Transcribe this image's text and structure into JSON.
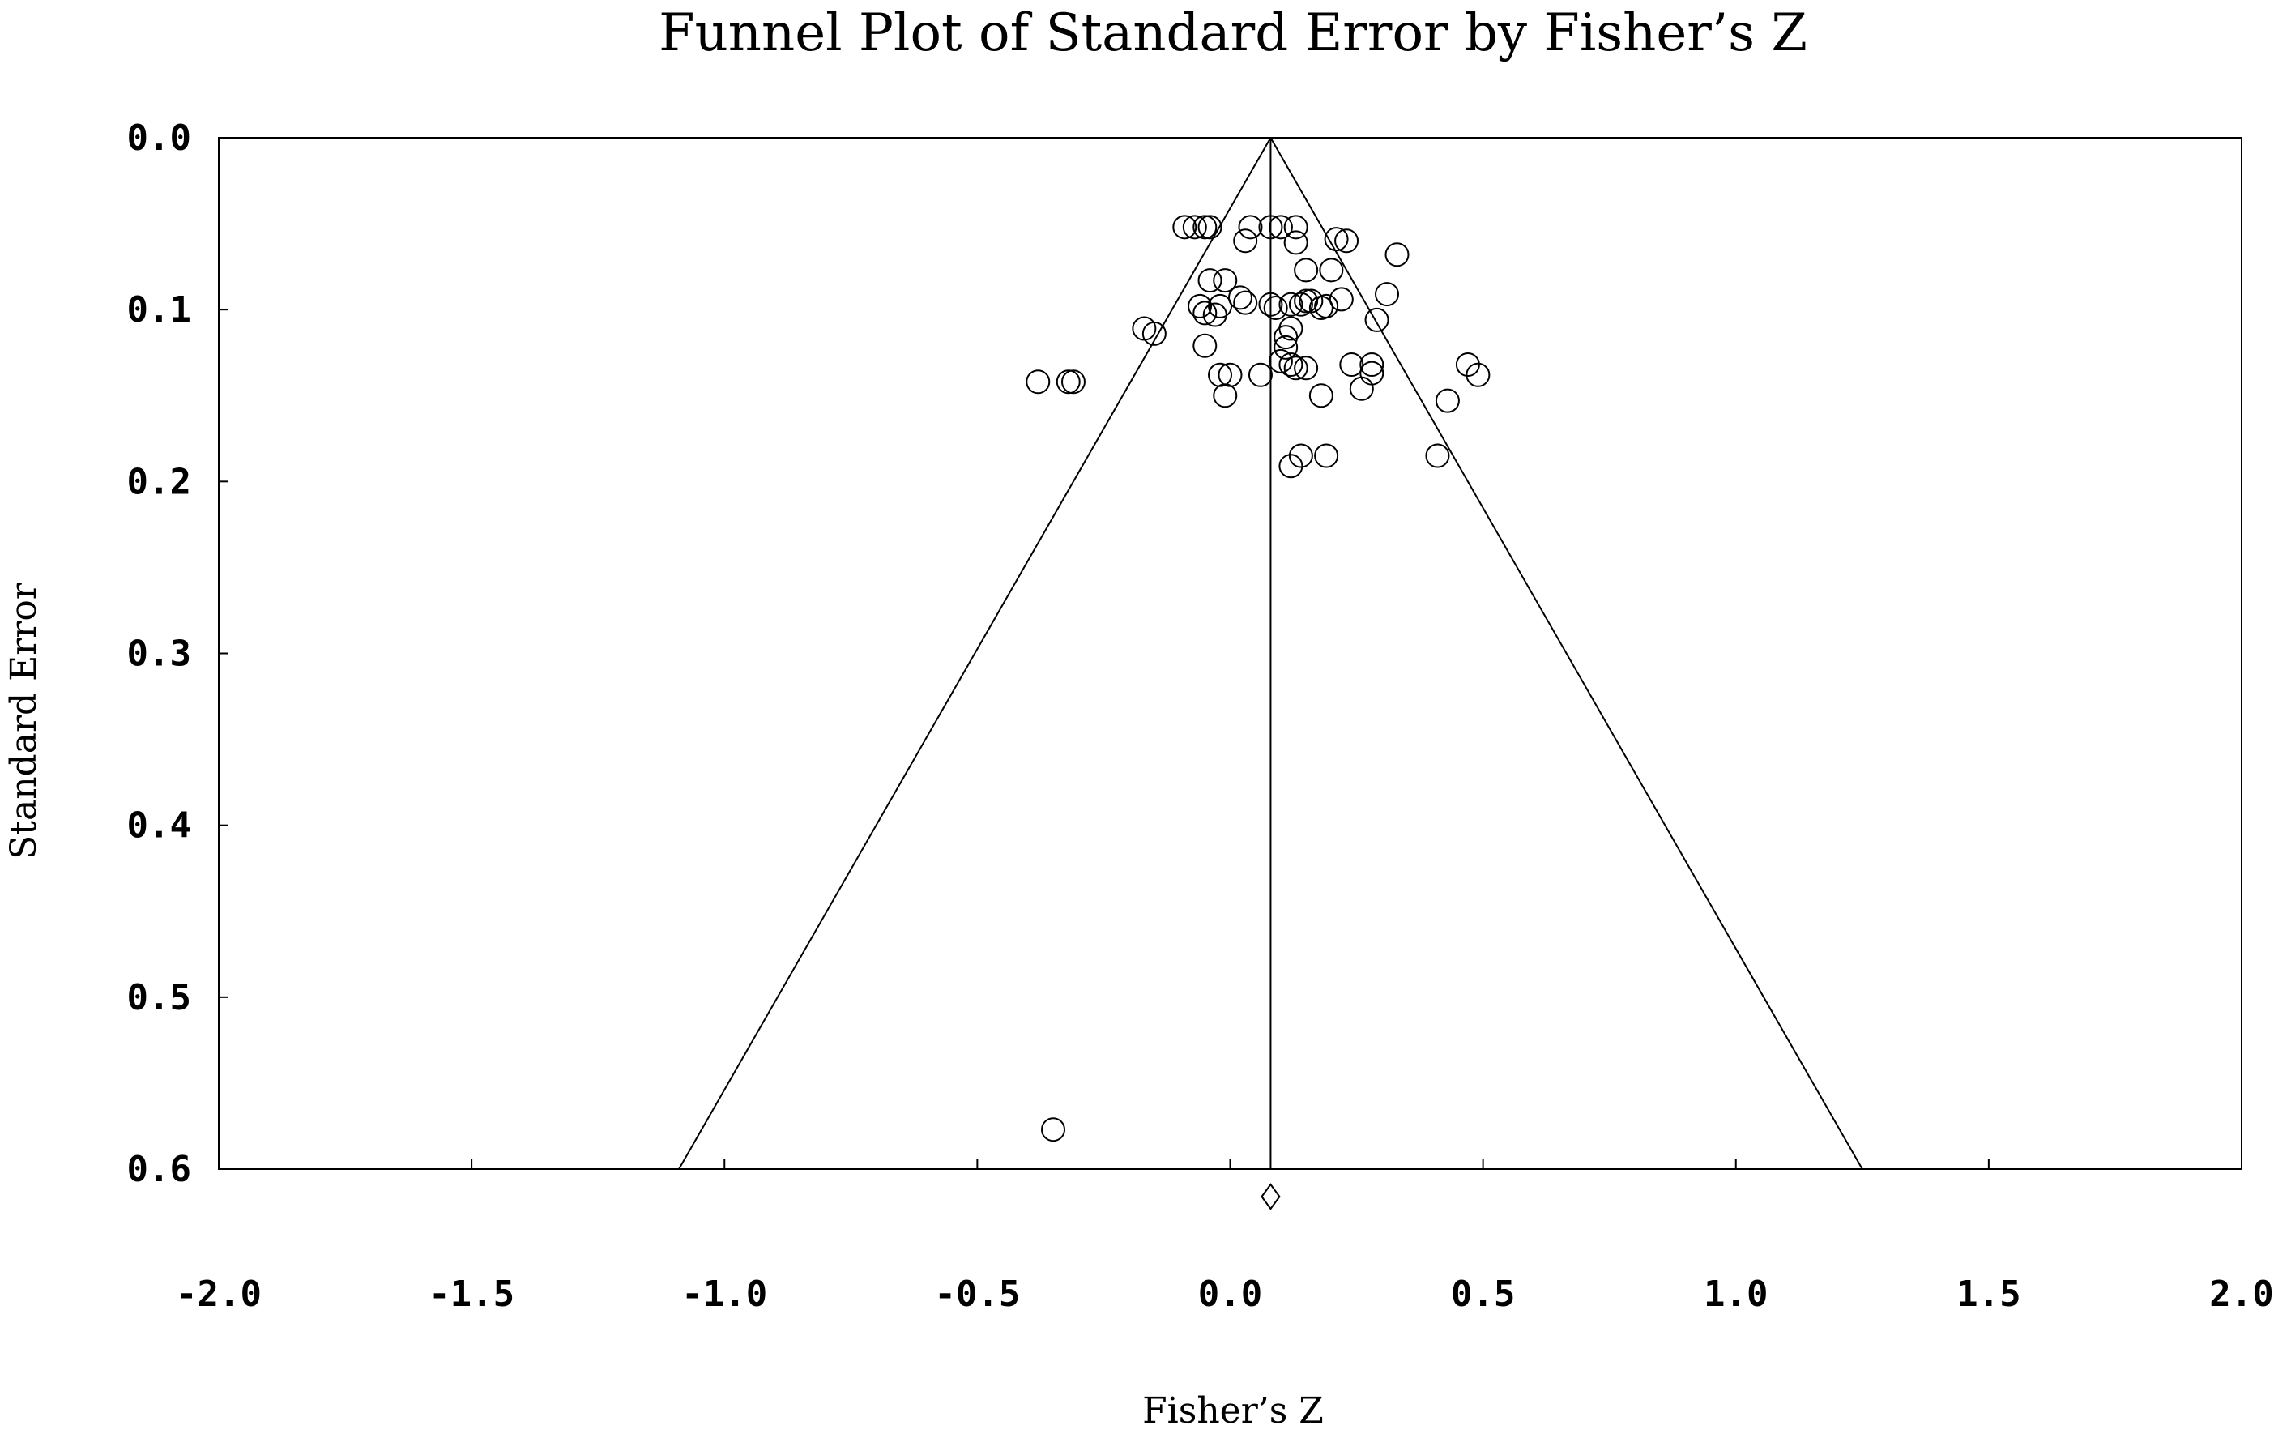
{
  "chart_data": {
    "type": "scatter",
    "title": "Funnel Plot of Standard Error by Fisher’s Z",
    "xlabel": "Fisher’s Z",
    "ylabel": "Standard Error",
    "xlim": [
      -2.0,
      2.0
    ],
    "ylim": [
      0.0,
      0.6
    ],
    "y_inverted": true,
    "grid": false,
    "x_ticks": [
      "-2.0",
      "-1.5",
      "-1.0",
      "-0.5",
      "0.0",
      "0.5",
      "1.0",
      "1.5",
      "2.0"
    ],
    "x_tick_values": [
      -2.0,
      -1.5,
      -1.0,
      -0.5,
      0.0,
      0.5,
      1.0,
      1.5,
      2.0
    ],
    "y_ticks": [
      "0.0",
      "0.1",
      "0.2",
      "0.3",
      "0.4",
      "0.5",
      "0.6"
    ],
    "y_tick_values": [
      0.0,
      0.1,
      0.2,
      0.3,
      0.4,
      0.5,
      0.6
    ],
    "summary_effect": 0.08,
    "funnel_limits": {
      "left_at_se_0_6": -1.09,
      "right_at_se_0_6": 1.25
    },
    "points": [
      {
        "x": -0.09,
        "y": 0.052
      },
      {
        "x": -0.07,
        "y": 0.052
      },
      {
        "x": -0.05,
        "y": 0.052
      },
      {
        "x": -0.04,
        "y": 0.052
      },
      {
        "x": 0.04,
        "y": 0.052
      },
      {
        "x": 0.08,
        "y": 0.052
      },
      {
        "x": 0.1,
        "y": 0.052
      },
      {
        "x": 0.13,
        "y": 0.052
      },
      {
        "x": 0.03,
        "y": 0.06
      },
      {
        "x": 0.13,
        "y": 0.061
      },
      {
        "x": 0.21,
        "y": 0.059
      },
      {
        "x": 0.23,
        "y": 0.06
      },
      {
        "x": 0.33,
        "y": 0.068
      },
      {
        "x": 0.15,
        "y": 0.077
      },
      {
        "x": 0.2,
        "y": 0.077
      },
      {
        "x": -0.04,
        "y": 0.083
      },
      {
        "x": -0.01,
        "y": 0.083
      },
      {
        "x": 0.31,
        "y": 0.091
      },
      {
        "x": 0.22,
        "y": 0.094
      },
      {
        "x": 0.02,
        "y": 0.093
      },
      {
        "x": 0.03,
        "y": 0.096
      },
      {
        "x": -0.06,
        "y": 0.098
      },
      {
        "x": -0.02,
        "y": 0.098
      },
      {
        "x": 0.08,
        "y": 0.097
      },
      {
        "x": 0.09,
        "y": 0.099
      },
      {
        "x": 0.12,
        "y": 0.097
      },
      {
        "x": 0.14,
        "y": 0.097
      },
      {
        "x": 0.15,
        "y": 0.095
      },
      {
        "x": 0.16,
        "y": 0.095
      },
      {
        "x": 0.18,
        "y": 0.099
      },
      {
        "x": 0.19,
        "y": 0.098
      },
      {
        "x": -0.05,
        "y": 0.102
      },
      {
        "x": -0.03,
        "y": 0.103
      },
      {
        "x": 0.29,
        "y": 0.106
      },
      {
        "x": -0.17,
        "y": 0.111
      },
      {
        "x": -0.15,
        "y": 0.114
      },
      {
        "x": 0.12,
        "y": 0.111
      },
      {
        "x": 0.11,
        "y": 0.116
      },
      {
        "x": -0.05,
        "y": 0.121
      },
      {
        "x": 0.11,
        "y": 0.122
      },
      {
        "x": 0.1,
        "y": 0.13
      },
      {
        "x": 0.12,
        "y": 0.132
      },
      {
        "x": 0.13,
        "y": 0.134
      },
      {
        "x": 0.15,
        "y": 0.134
      },
      {
        "x": 0.24,
        "y": 0.132
      },
      {
        "x": 0.28,
        "y": 0.132
      },
      {
        "x": 0.47,
        "y": 0.132
      },
      {
        "x": 0.28,
        "y": 0.137
      },
      {
        "x": 0.49,
        "y": 0.138
      },
      {
        "x": -0.02,
        "y": 0.138
      },
      {
        "x": 0.0,
        "y": 0.138
      },
      {
        "x": 0.06,
        "y": 0.138
      },
      {
        "x": -0.38,
        "y": 0.142
      },
      {
        "x": -0.32,
        "y": 0.142
      },
      {
        "x": -0.31,
        "y": 0.142
      },
      {
        "x": 0.26,
        "y": 0.146
      },
      {
        "x": -0.01,
        "y": 0.15
      },
      {
        "x": 0.18,
        "y": 0.15
      },
      {
        "x": 0.43,
        "y": 0.153
      },
      {
        "x": 0.14,
        "y": 0.185
      },
      {
        "x": 0.19,
        "y": 0.185
      },
      {
        "x": 0.41,
        "y": 0.185
      },
      {
        "x": 0.12,
        "y": 0.191
      },
      {
        "x": -0.35,
        "y": 0.577
      }
    ]
  }
}
